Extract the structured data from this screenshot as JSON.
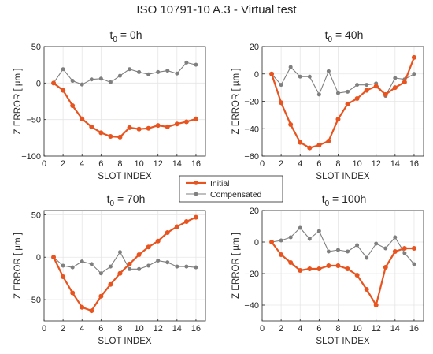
{
  "figure_title": "ISO 10791-10 A.3 - Virtual test",
  "legend": {
    "initial_label": "Initial",
    "compensated_label": "Compensated"
  },
  "colors": {
    "initial": "#e8541f",
    "compensated": "#7f7f7f",
    "axis": "#262626",
    "grid": "#e6e6e6"
  },
  "chart_data": [
    {
      "type": "line",
      "title": "t0 = 0h",
      "title_parts": {
        "base": "t",
        "sub": "0",
        "rest": " = 0h"
      },
      "xlabel": "SLOT INDEX",
      "ylabel": "Z ERROR [ µm ]",
      "xlim": [
        0,
        17
      ],
      "ylim": [
        -100,
        50
      ],
      "xticks": [
        0,
        2,
        4,
        6,
        8,
        10,
        12,
        14,
        16
      ],
      "yticks": [
        -100,
        -50,
        0,
        50
      ],
      "grid": true,
      "x": [
        1,
        2,
        3,
        4,
        5,
        6,
        7,
        8,
        9,
        10,
        11,
        12,
        13,
        14,
        15,
        16
      ],
      "series": [
        {
          "name": "Initial",
          "values": [
            0,
            -10,
            -31,
            -49,
            -60,
            -68,
            -73,
            -74,
            -61,
            -63,
            -62,
            -58,
            -60,
            -56,
            -53,
            -49
          ]
        },
        {
          "name": "Compensated",
          "values": [
            0,
            19,
            3,
            -2,
            5,
            6,
            1,
            10,
            19,
            15,
            12,
            15,
            17,
            13,
            28,
            25
          ]
        }
      ]
    },
    {
      "type": "line",
      "title": "t0 = 40h",
      "title_parts": {
        "base": "t",
        "sub": "0",
        "rest": " = 40h"
      },
      "xlabel": "SLOT INDEX",
      "ylabel": "Z ERROR [ µm ]",
      "xlim": [
        0,
        17
      ],
      "ylim": [
        -60,
        20
      ],
      "xticks": [
        0,
        2,
        4,
        6,
        8,
        10,
        12,
        14,
        16
      ],
      "yticks": [
        -60,
        -40,
        -20,
        0,
        20
      ],
      "grid": true,
      "x": [
        1,
        2,
        3,
        4,
        5,
        6,
        7,
        8,
        9,
        10,
        11,
        12,
        13,
        14,
        15,
        16
      ],
      "series": [
        {
          "name": "Initial",
          "values": [
            0,
            -21,
            -37,
            -50,
            -54,
            -52,
            -49,
            -33,
            -22,
            -18,
            -12,
            -9,
            -15,
            -10,
            -6,
            12
          ]
        },
        {
          "name": "Compensated",
          "values": [
            0,
            -8,
            5,
            -2,
            -2,
            -15,
            2,
            -14,
            -13,
            -8,
            -8,
            -7,
            -16,
            -3,
            -4,
            0
          ]
        }
      ]
    },
    {
      "type": "line",
      "title": "t0 = 70h",
      "title_parts": {
        "base": "t",
        "sub": "0",
        "rest": " = 70h"
      },
      "xlabel": "SLOT INDEX",
      "ylabel": "Z ERROR [ µm ]",
      "xlim": [
        0,
        17
      ],
      "ylim": [
        -75,
        55
      ],
      "xticks": [
        0,
        2,
        4,
        6,
        8,
        10,
        12,
        14,
        16
      ],
      "yticks": [
        -50,
        0,
        50
      ],
      "grid": true,
      "x": [
        1,
        2,
        3,
        4,
        5,
        6,
        7,
        8,
        9,
        10,
        11,
        12,
        13,
        14,
        15,
        16
      ],
      "series": [
        {
          "name": "Initial",
          "values": [
            0,
            -23,
            -42,
            -59,
            -63,
            -46,
            -32,
            -19,
            -8,
            3,
            12,
            19,
            29,
            36,
            42,
            47
          ]
        },
        {
          "name": "Compensated",
          "values": [
            0,
            -10,
            -12,
            -5,
            -8,
            -19,
            -11,
            6,
            -14,
            -14,
            -10,
            -4,
            -6,
            -11,
            -11,
            -12
          ]
        }
      ]
    },
    {
      "type": "line",
      "title": "t0 = 100h",
      "title_parts": {
        "base": "t",
        "sub": "0",
        "rest": " = 100h"
      },
      "xlabel": "SLOT INDEX",
      "ylabel": "Z ERROR [ µm ]",
      "xlim": [
        0,
        17
      ],
      "ylim": [
        -50,
        20
      ],
      "xticks": [
        0,
        2,
        4,
        6,
        8,
        10,
        12,
        14,
        16
      ],
      "yticks": [
        -40,
        -20,
        0,
        20
      ],
      "grid": true,
      "x": [
        1,
        2,
        3,
        4,
        5,
        6,
        7,
        8,
        9,
        10,
        11,
        12,
        13,
        14,
        15,
        16
      ],
      "series": [
        {
          "name": "Initial",
          "values": [
            0,
            -8,
            -13,
            -18,
            -17,
            -17,
            -15,
            -15,
            -17,
            -21,
            -30,
            -40,
            -16,
            -6,
            -4,
            -4
          ]
        },
        {
          "name": "Compensated",
          "values": [
            0,
            1,
            3,
            9,
            2,
            7,
            -6,
            -5,
            -6,
            -2,
            -10,
            -1,
            -4,
            3,
            -7,
            -14
          ]
        }
      ]
    }
  ]
}
